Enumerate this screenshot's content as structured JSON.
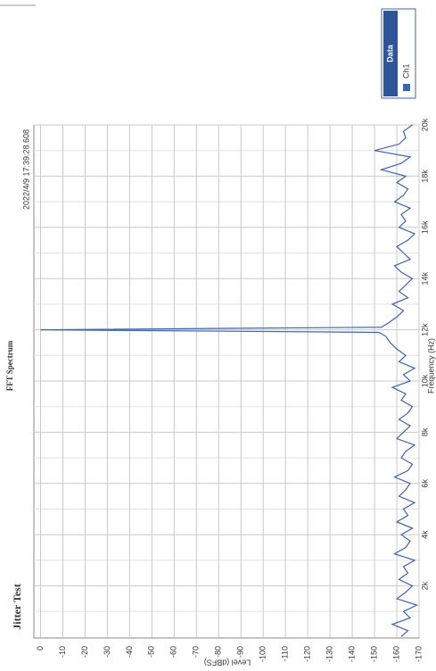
{
  "chart_data": {
    "type": "line",
    "title": "FFT Spectrum",
    "subtitle": "Jitter Test",
    "timestamp": "2022/4/9 17:39:28.608",
    "xlabel": "Frequency (Hz)",
    "ylabel": "Level (dBFS)",
    "legend_title": "Data",
    "legend": "top-right",
    "grid": true,
    "xlim": [
      0,
      20000
    ],
    "ylim": [
      -170,
      3
    ],
    "xticks": [
      {
        "value": 2000,
        "label": "2k"
      },
      {
        "value": 4000,
        "label": "4k"
      },
      {
        "value": 6000,
        "label": "6k"
      },
      {
        "value": 8000,
        "label": "8k"
      },
      {
        "value": 10000,
        "label": "10k"
      },
      {
        "value": 12000,
        "label": "12k"
      },
      {
        "value": 14000,
        "label": "14k"
      },
      {
        "value": 16000,
        "label": "16k"
      },
      {
        "value": 18000,
        "label": "18k"
      },
      {
        "value": 20000,
        "label": "20k"
      }
    ],
    "xminor": [
      1000,
      3000,
      5000,
      7000,
      9000,
      11000,
      13000,
      15000,
      17000,
      19000
    ],
    "yticks": [
      0,
      -10,
      -20,
      -30,
      -40,
      -50,
      -60,
      -70,
      -80,
      -90,
      -100,
      -110,
      -120,
      -130,
      -140,
      -150,
      -160,
      -170
    ],
    "x": [
      20,
      250,
      500,
      750,
      1000,
      1250,
      1500,
      1750,
      2000,
      2250,
      2500,
      2750,
      3000,
      3250,
      3500,
      3750,
      4000,
      4250,
      4500,
      4750,
      5000,
      5250,
      5500,
      5750,
      6000,
      6250,
      6500,
      6750,
      7000,
      7250,
      7500,
      7750,
      8000,
      8250,
      8500,
      8750,
      9000,
      9250,
      9500,
      9750,
      10000,
      10250,
      10500,
      10750,
      11000,
      11250,
      11500,
      11750,
      11900,
      12000,
      12100,
      12250,
      12500,
      12750,
      13000,
      13250,
      13500,
      13750,
      14000,
      14250,
      14500,
      14750,
      15000,
      15250,
      15500,
      15750,
      16000,
      16250,
      16500,
      16750,
      17000,
      17250,
      17500,
      17750,
      18000,
      18250,
      18500,
      18750,
      19000,
      19250,
      19500,
      19750,
      20000
    ],
    "series": [
      {
        "name": "Ch1",
        "color": "#3f63b0",
        "values": [
          -162,
          -165,
          -158,
          -166,
          -163,
          -169,
          -160,
          -164,
          -167,
          -161,
          -165,
          -163,
          -168,
          -159,
          -164,
          -166,
          -162,
          -167,
          -160,
          -165,
          -163,
          -168,
          -161,
          -164,
          -166,
          -159,
          -165,
          -167,
          -162,
          -164,
          -168,
          -160,
          -163,
          -166,
          -161,
          -165,
          -167,
          -162,
          -164,
          -158,
          -166,
          -163,
          -168,
          -161,
          -164,
          -160,
          -157,
          -155,
          -152,
          0,
          -153,
          -156,
          -160,
          -163,
          -158,
          -165,
          -161,
          -164,
          -167,
          -162,
          -159,
          -166,
          -163,
          -160,
          -165,
          -168,
          -161,
          -164,
          -162,
          -166,
          -159,
          -163,
          -165,
          -160,
          -164,
          -153,
          -162,
          -166,
          -150,
          -161,
          -164,
          -163,
          -167
        ]
      }
    ]
  }
}
